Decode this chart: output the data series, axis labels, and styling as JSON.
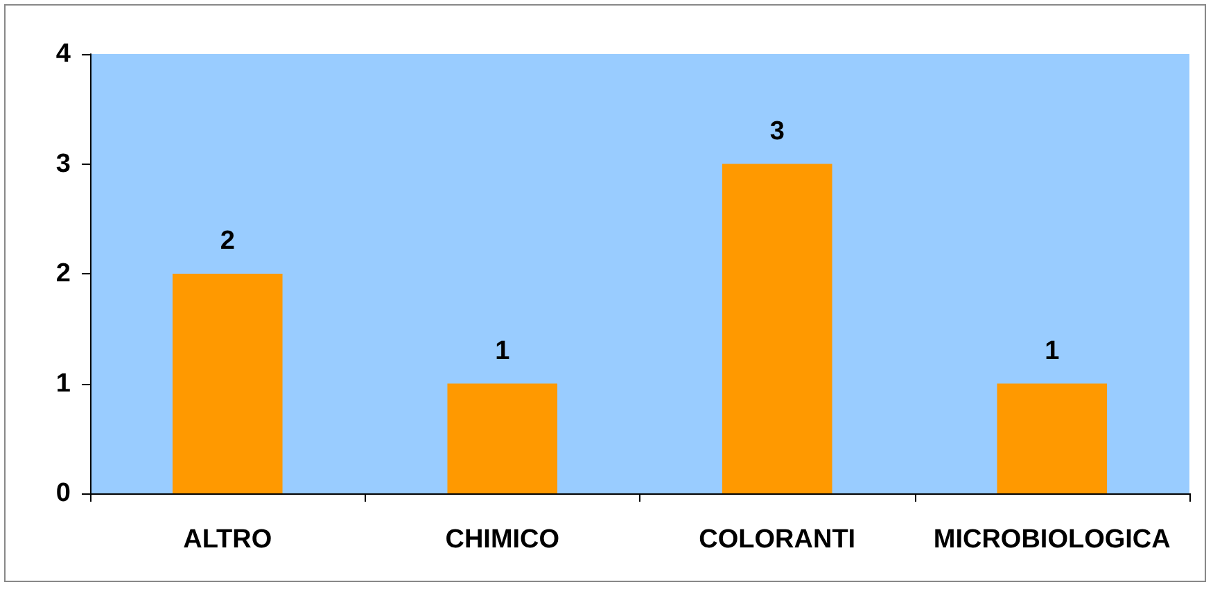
{
  "chart_data": {
    "type": "bar",
    "categories": [
      "ALTRO",
      "CHIMICO",
      "COLORANTI",
      "MICROBIOLOGICA"
    ],
    "values": [
      2,
      1,
      3,
      1
    ],
    "color": "#ff9900",
    "ylim": [
      0,
      4
    ],
    "yticks": [
      0,
      1,
      2,
      3,
      4
    ],
    "grid": false,
    "data_labels": true
  }
}
